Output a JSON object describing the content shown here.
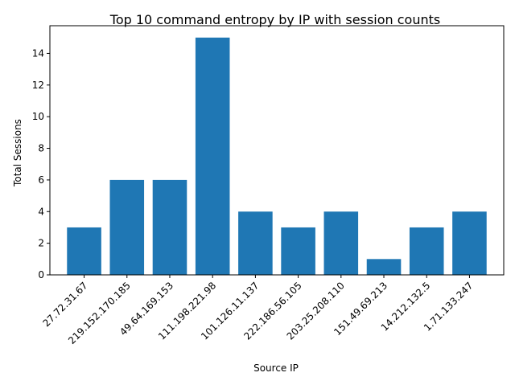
{
  "chart_data": {
    "type": "bar",
    "title": "Top 10 command entropy by IP with session counts",
    "xlabel": "Source IP",
    "ylabel": "Total Sessions",
    "categories": [
      "27.72.31.67",
      "219.152.170.185",
      "49.64.169.153",
      "111.198.221.98",
      "101.126.11.137",
      "222.186.56.105",
      "203.25.208.110",
      "151.49.69.213",
      "14.212.132.5",
      "1.71.133.247"
    ],
    "values": [
      3,
      6,
      6,
      15,
      4,
      3,
      4,
      1,
      3,
      4
    ],
    "ylim": [
      0,
      15.75
    ],
    "yticks": [
      0,
      2,
      4,
      6,
      8,
      10,
      12,
      14
    ],
    "bar_color": "#1f77b4",
    "grid": false,
    "legend": "none"
  }
}
